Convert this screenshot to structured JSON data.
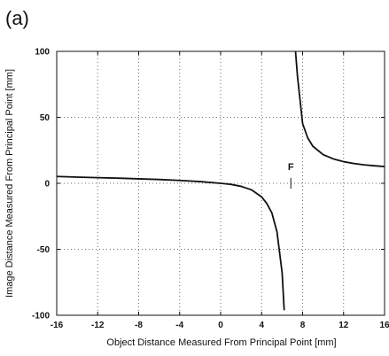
{
  "figure": {
    "panel_label": "(a)"
  },
  "chart_data": {
    "type": "line",
    "title": "",
    "xlabel": "Object Distance Measured From Principal Point [mm]",
    "ylabel": "Image Distance Measured From Principal Point [mm]",
    "xlim": [
      -16,
      16
    ],
    "ylim": [
      -100,
      100
    ],
    "xticks": [
      -16,
      -12,
      -8,
      -4,
      0,
      4,
      8,
      12,
      16
    ],
    "yticks": [
      -100,
      -50,
      0,
      50,
      100
    ],
    "x_tick_labels": [
      "-16",
      "-12",
      "-8",
      "-4",
      "0",
      "4",
      "8",
      "12",
      "16"
    ],
    "y_tick_labels": [
      "-100",
      "-50",
      "0",
      "50",
      "100"
    ],
    "grid": true,
    "grid_style": "dotted",
    "series": [
      {
        "segments": [
          {
            "x": [
              -16,
              -14,
              -12,
              -10,
              -8,
              -6,
              -4,
              -2,
              0,
              1,
              2,
              3,
              4,
              4.5,
              5,
              5.5,
              6,
              6.2
            ],
            "y": [
              5.2,
              4.7,
              4.3,
              3.9,
              3.4,
              2.9,
              2.2,
              1.3,
              0,
              -0.8,
              -2.3,
              -4.9,
              -10.3,
              -15.2,
              -22.4,
              -36.8,
              -67.7,
              -95.7
            ]
          },
          {
            "x": [
              7.3,
              7.5,
              8,
              8.5,
              9,
              10,
              11,
              12,
              13,
              14,
              15,
              16
            ],
            "y": [
              100.8,
              81.1,
              45.3,
              34.4,
              28.1,
              21.8,
              18.5,
              16.4,
              15.0,
              14.0,
              13.3,
              12.7
            ]
          }
        ]
      }
    ],
    "annotations": [
      {
        "text": "F",
        "x": 6.85,
        "y": 0
      }
    ],
    "colors": {
      "curve": "#111111",
      "frame": "#111111",
      "grid": "#6e6e6e",
      "background": "#ffffff"
    }
  }
}
